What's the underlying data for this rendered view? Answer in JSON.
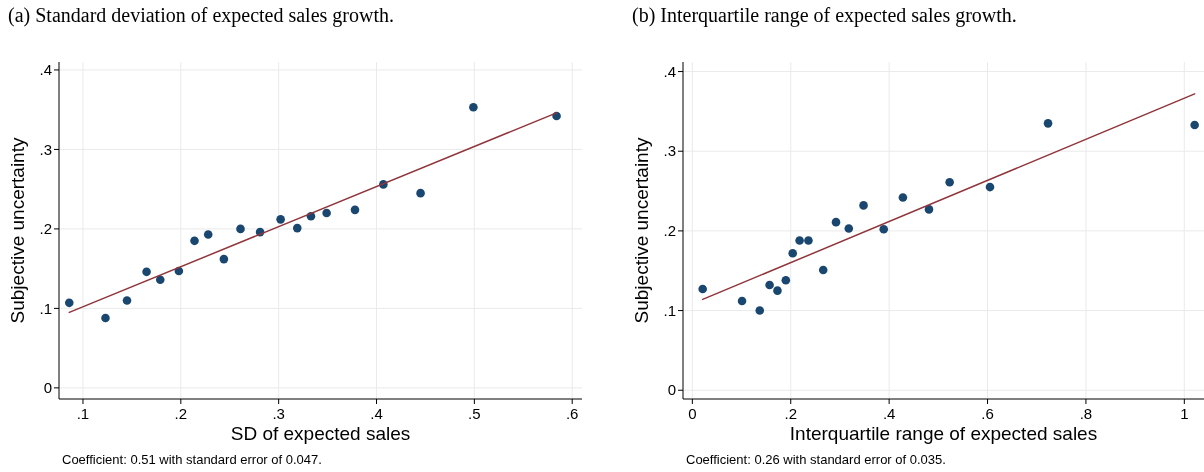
{
  "chart_data": [
    {
      "type": "scatter",
      "title": "(a) Standard deviation of expected sales growth.",
      "xlabel": "SD of expected sales",
      "ylabel": "Subjective uncertainty",
      "annotations": [
        "Coefficient: 0.51 with standard error of 0.047."
      ],
      "xlim": [
        0.0755,
        0.61
      ],
      "ylim": [
        -0.014,
        0.41
      ],
      "xticks": [
        {
          "value": 0.1,
          "label": ".1"
        },
        {
          "value": 0.2,
          "label": ".2"
        },
        {
          "value": 0.3,
          "label": ".3"
        },
        {
          "value": 0.4,
          "label": ".4"
        },
        {
          "value": 0.5,
          "label": ".5"
        },
        {
          "value": 0.6,
          "label": ".6"
        }
      ],
      "yticks": [
        0,
        {
          "value": 0.1,
          "label": ".1"
        },
        {
          "value": 0.2,
          "label": ".2"
        },
        {
          "value": 0.3,
          "label": ".3"
        },
        {
          "value": 0.4,
          "label": ".4"
        }
      ],
      "grid": true,
      "series": [
        {
          "marker": "circle",
          "color": "#1a476f",
          "x": [
            0.086,
            0.123,
            0.145,
            0.165,
            0.179,
            0.198,
            0.214,
            0.228,
            0.244,
            0.261,
            0.281,
            0.302,
            0.319,
            0.333,
            0.349,
            0.378,
            0.407,
            0.445,
            0.499,
            0.584
          ],
          "values": [
            0.107,
            0.088,
            0.11,
            0.146,
            0.136,
            0.147,
            0.185,
            0.193,
            0.162,
            0.2,
            0.196,
            0.212,
            0.201,
            0.216,
            0.22,
            0.224,
            0.256,
            0.245,
            0.353,
            0.342
          ]
        },
        {
          "type": "line",
          "marker": "none",
          "color": "#90353b",
          "x": [
            0.086,
            0.584
          ],
          "values": [
            0.095,
            0.346
          ]
        }
      ]
    },
    {
      "type": "scatter",
      "title": "(b) Interquartile range of expected sales growth.",
      "xlabel": "Interquartile range of expected sales",
      "ylabel": "Subjective uncertainty",
      "annotations": [
        "Coefficient: 0.26 with standard error of 0.035."
      ],
      "xlim": [
        -0.019,
        1.04
      ],
      "ylim": [
        -0.011,
        0.412
      ],
      "xticks": [
        0,
        {
          "value": 0.2,
          "label": ".2"
        },
        {
          "value": 0.4,
          "label": ".4"
        },
        {
          "value": 0.6,
          "label": ".6"
        },
        {
          "value": 0.8,
          "label": ".8"
        },
        1
      ],
      "yticks": [
        0,
        {
          "value": 0.1,
          "label": ".1"
        },
        {
          "value": 0.2,
          "label": ".2"
        },
        {
          "value": 0.3,
          "label": ".3"
        },
        {
          "value": 0.4,
          "label": ".4"
        }
      ],
      "grid": true,
      "series": [
        {
          "marker": "circle",
          "color": "#1a476f",
          "x": [
            0.021,
            0.101,
            0.137,
            0.157,
            0.173,
            0.19,
            0.204,
            0.218,
            0.236,
            0.266,
            0.292,
            0.318,
            0.348,
            0.389,
            0.428,
            0.481,
            0.523,
            0.605,
            0.723,
            1.021
          ],
          "values": [
            0.127,
            0.112,
            0.1,
            0.132,
            0.125,
            0.138,
            0.172,
            0.188,
            0.188,
            0.151,
            0.211,
            0.203,
            0.232,
            0.202,
            0.242,
            0.227,
            0.261,
            0.255,
            0.335,
            0.333
          ]
        },
        {
          "type": "line",
          "marker": "none",
          "color": "#90353b",
          "x": [
            0.021,
            1.021
          ],
          "values": [
            0.114,
            0.372
          ]
        }
      ]
    }
  ]
}
